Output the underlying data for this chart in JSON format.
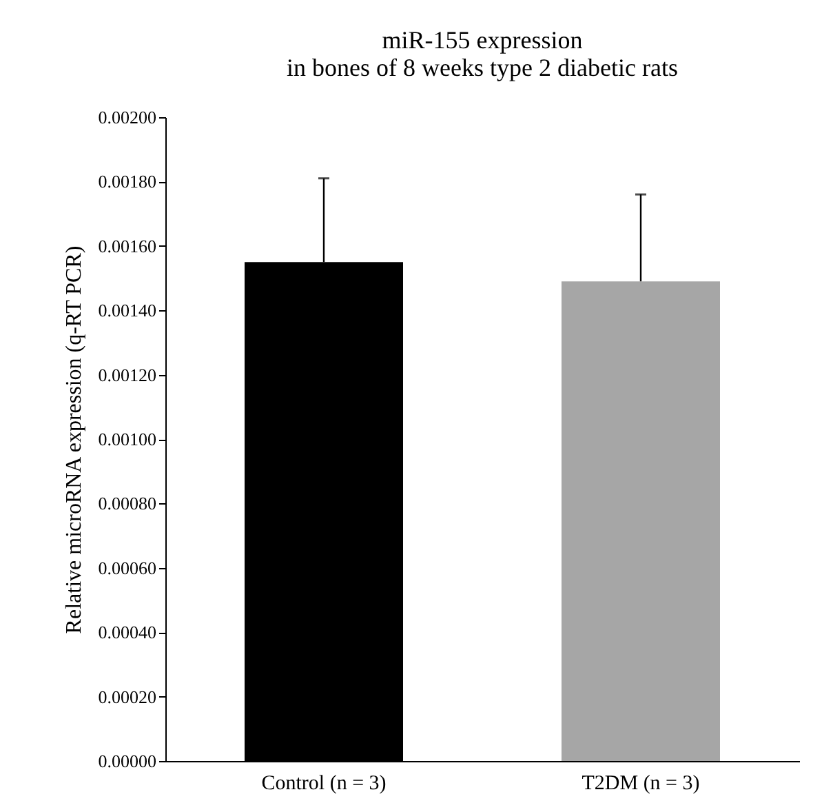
{
  "chart_data": {
    "type": "bar",
    "title": [
      "miR-155 expression",
      "in bones of 8 weeks type 2 diabetic rats"
    ],
    "ylabel": "Relative microRNA expression (q-RT PCR)",
    "categories": [
      "Control (n = 3)",
      "T2DM (n = 3)"
    ],
    "values": [
      0.00155,
      0.00149
    ],
    "colors": [
      "#000000",
      "#a6a6a6"
    ],
    "errors": [
      [
        0.00155,
        0.00181
      ],
      [
        0.00149,
        0.00176
      ]
    ],
    "ylim": [
      0,
      0.002
    ],
    "yticks": [
      {
        "value": 0,
        "label": "0.00000"
      },
      {
        "value": 0.0002,
        "label": "0.00020"
      },
      {
        "value": 0.0004,
        "label": "0.00040"
      },
      {
        "value": 0.0006,
        "label": "0.00060"
      },
      {
        "value": 0.0008,
        "label": "0.00080"
      },
      {
        "value": 0.001,
        "label": "0.00100"
      },
      {
        "value": 0.0012,
        "label": "0.00120"
      },
      {
        "value": 0.0014,
        "label": "0.00140"
      },
      {
        "value": 0.0016,
        "label": "0.00160"
      },
      {
        "value": 0.0018,
        "label": "0.00180"
      },
      {
        "value": 0.002,
        "label": "0.00200"
      }
    ],
    "grid": false,
    "legend": false
  }
}
